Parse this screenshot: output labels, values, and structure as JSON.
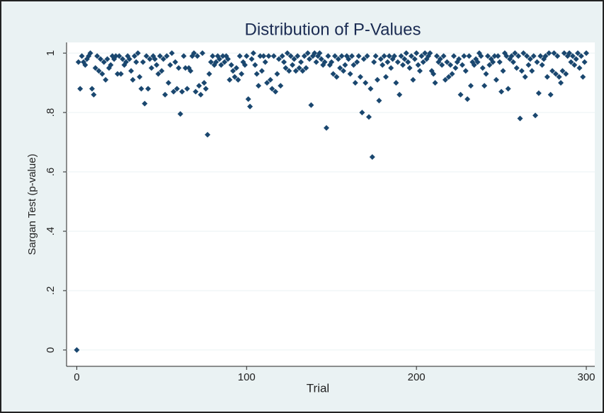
{
  "chart_data": {
    "type": "scatter",
    "title": "Distribution of P-Values",
    "x_label": "Trial",
    "y_label": "Sargan Test (p-value)",
    "color": "#1a476f",
    "grid": true,
    "xlim": [
      -6,
      305
    ],
    "ylim": [
      -0.055,
      1.036
    ],
    "xticks": [
      0,
      100,
      200,
      300
    ],
    "yticks": [
      0,
      {
        "value": 0.2,
        "label": ".2"
      },
      {
        "value": 0.4,
        "label": ".4"
      },
      {
        "value": 0.6,
        "label": ".6"
      },
      {
        "value": 0.8,
        "label": ".8"
      },
      1
    ],
    "x": [
      0,
      1,
      2,
      3,
      4,
      5,
      6,
      7,
      8,
      9,
      10,
      11,
      12,
      13,
      14,
      15,
      16,
      17,
      18,
      19,
      20,
      21,
      22,
      23,
      24,
      25,
      26,
      27,
      28,
      29,
      30,
      31,
      32,
      33,
      34,
      35,
      36,
      37,
      38,
      39,
      40,
      41,
      42,
      43,
      44,
      45,
      46,
      47,
      48,
      49,
      50,
      51,
      52,
      53,
      54,
      55,
      56,
      57,
      58,
      59,
      60,
      61,
      62,
      63,
      64,
      65,
      66,
      67,
      68,
      69,
      70,
      71,
      72,
      73,
      74,
      75,
      76,
      77,
      78,
      79,
      80,
      81,
      82,
      83,
      84,
      85,
      86,
      87,
      88,
      89,
      90,
      91,
      92,
      93,
      94,
      95,
      96,
      97,
      98,
      99,
      100,
      101,
      102,
      103,
      104,
      105,
      106,
      107,
      108,
      109,
      110,
      111,
      112,
      113,
      114,
      115,
      116,
      117,
      118,
      119,
      120,
      121,
      122,
      123,
      124,
      125,
      126,
      127,
      128,
      129,
      130,
      131,
      132,
      133,
      134,
      135,
      136,
      137,
      138,
      139,
      140,
      141,
      142,
      143,
      144,
      145,
      146,
      147,
      148,
      149,
      150,
      151,
      152,
      153,
      154,
      155,
      156,
      157,
      158,
      159,
      160,
      161,
      162,
      163,
      164,
      165,
      166,
      167,
      168,
      169,
      170,
      171,
      172,
      173,
      174,
      175,
      176,
      177,
      178,
      179,
      180,
      181,
      182,
      183,
      184,
      185,
      186,
      187,
      188,
      189,
      190,
      191,
      192,
      193,
      194,
      195,
      196,
      197,
      198,
      199,
      200,
      201,
      202,
      203,
      204,
      205,
      206,
      207,
      208,
      209,
      210,
      211,
      212,
      213,
      214,
      215,
      216,
      217,
      218,
      219,
      220,
      221,
      222,
      223,
      224,
      225,
      226,
      227,
      228,
      229,
      230,
      231,
      232,
      233,
      234,
      235,
      236,
      237,
      238,
      239,
      240,
      241,
      242,
      243,
      244,
      245,
      246,
      247,
      248,
      249,
      250,
      251,
      252,
      253,
      254,
      255,
      256,
      257,
      258,
      259,
      260,
      261,
      262,
      263,
      264,
      265,
      266,
      267,
      268,
      269,
      270,
      271,
      272,
      273,
      274,
      275,
      276,
      277,
      278,
      279,
      280,
      281,
      282,
      283,
      284,
      285,
      286,
      287,
      288,
      289,
      290,
      291,
      292,
      293,
      294,
      295,
      296,
      297,
      298,
      299,
      300
    ],
    "values": [
      0,
      0.97,
      0.88,
      0.99,
      0.97,
      0.96,
      0.98,
      0.99,
      1.0,
      0.88,
      0.86,
      0.95,
      0.99,
      0.94,
      0.98,
      0.93,
      0.97,
      0.91,
      0.98,
      0.95,
      0.96,
      0.99,
      0.98,
      0.99,
      0.93,
      0.99,
      0.93,
      0.98,
      0.96,
      0.97,
      0.99,
      0.98,
      0.94,
      0.91,
      0.99,
      0.97,
      1.0,
      0.92,
      0.88,
      0.97,
      0.83,
      0.99,
      0.88,
      0.98,
      0.95,
      0.99,
      0.98,
      0.96,
      0.93,
      0.99,
      0.94,
      0.98,
      0.86,
      0.99,
      0.9,
      0.96,
      1.0,
      0.87,
      0.97,
      0.88,
      0.95,
      0.795,
      0.87,
      0.99,
      0.95,
      0.88,
      0.95,
      0.94,
      0.99,
      1.0,
      0.87,
      0.99,
      0.89,
      0.86,
      1.0,
      0.9,
      0.88,
      0.725,
      0.93,
      0.97,
      0.99,
      0.96,
      0.97,
      0.99,
      0.98,
      0.96,
      0.99,
      0.97,
      0.99,
      0.98,
      0.91,
      0.96,
      0.94,
      0.92,
      0.95,
      0.91,
      0.99,
      0.93,
      0.97,
      0.96,
      0.99,
      0.845,
      0.82,
      0.98,
      1.0,
      0.96,
      0.93,
      0.89,
      0.99,
      0.94,
      0.99,
      0.97,
      0.9,
      0.99,
      0.91,
      0.88,
      0.99,
      0.87,
      0.93,
      0.98,
      0.89,
      0.99,
      0.97,
      0.95,
      1.0,
      0.94,
      0.99,
      0.96,
      0.98,
      0.94,
      0.99,
      0.95,
      0.97,
      0.94,
      0.99,
      0.95,
      1.0,
      0.98,
      0.825,
      0.99,
      1.0,
      0.97,
      0.99,
      1.0,
      0.98,
      0.96,
      0.97,
      0.748,
      0.99,
      0.96,
      0.97,
      0.93,
      0.99,
      0.92,
      0.98,
      0.95,
      0.99,
      0.94,
      0.96,
      0.99,
      0.98,
      0.93,
      0.99,
      0.96,
      0.9,
      0.97,
      0.99,
      0.92,
      0.8,
      0.98,
      0.9,
      0.99,
      0.785,
      0.88,
      0.65,
      0.97,
      0.99,
      0.91,
      0.84,
      0.98,
      0.96,
      0.99,
      0.92,
      0.97,
      0.99,
      0.95,
      0.98,
      0.99,
      0.9,
      0.97,
      0.86,
      0.99,
      0.96,
      0.98,
      1.0,
      0.97,
      0.95,
      0.99,
      0.91,
      0.98,
      1.0,
      0.96,
      0.94,
      0.99,
      0.97,
      1.0,
      0.98,
      0.99,
      1.0,
      0.94,
      0.93,
      0.9,
      0.99,
      0.97,
      0.98,
      0.96,
      0.99,
      0.91,
      0.97,
      0.92,
      0.96,
      0.93,
      0.99,
      0.95,
      0.97,
      0.98,
      0.86,
      0.96,
      0.99,
      0.94,
      0.845,
      0.99,
      0.89,
      0.97,
      0.96,
      0.98,
      0.97,
      1.0,
      0.99,
      0.95,
      0.89,
      0.93,
      0.99,
      0.96,
      0.98,
      0.97,
      0.99,
      0.91,
      0.99,
      0.97,
      0.87,
      0.94,
      1.0,
      0.99,
      0.88,
      0.98,
      0.99,
      0.97,
      1.0,
      0.95,
      0.99,
      0.78,
      0.94,
      1.0,
      0.92,
      0.99,
      0.96,
      0.98,
      0.94,
      0.99,
      0.79,
      0.97,
      0.865,
      0.99,
      0.96,
      0.98,
      0.99,
      0.92,
      1.0,
      0.86,
      0.94,
      1.0,
      0.93,
      0.99,
      0.92,
      0.9,
      0.94,
      1.0,
      0.93,
      0.99,
      1.0,
      0.97,
      0.99,
      0.96,
      0.98,
      1.0,
      0.95,
      0.99,
      0.92,
      0.97,
      1.0
    ]
  }
}
